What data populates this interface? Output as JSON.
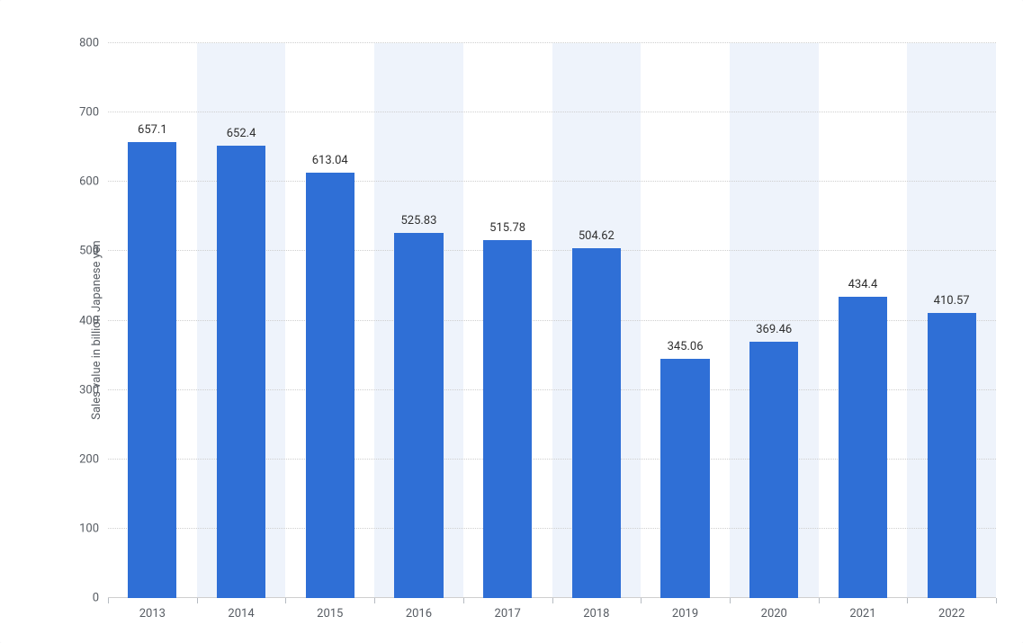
{
  "chart": {
    "type": "bar",
    "ylabel": "Sales value in billion Japanese yen",
    "ylim": [
      0,
      800
    ],
    "ytick_step": 100,
    "yticks": [
      0,
      100,
      200,
      300,
      400,
      500,
      600,
      700,
      800
    ],
    "categories": [
      "2013",
      "2014",
      "2015",
      "2016",
      "2017",
      "2018",
      "2019",
      "2020",
      "2021",
      "2022"
    ],
    "values": [
      657.1,
      652.4,
      613.04,
      525.83,
      515.78,
      504.62,
      345.06,
      369.46,
      434.4,
      410.57
    ],
    "value_labels": [
      "657.1",
      "652.4",
      "613.04",
      "525.83",
      "515.78",
      "504.62",
      "345.06",
      "369.46",
      "434.4",
      "410.57"
    ],
    "bar_color": "#2f6fd6",
    "alt_band_color": "#eef3fb",
    "background_color": "#ffffff",
    "grid_color": "#cfcfcf",
    "axis_text_color": "#575c63",
    "label_text_color": "#2f2f2f",
    "tick_fontsize": 13,
    "value_label_fontsize": 13,
    "ylabel_fontsize": 13,
    "bar_width_ratio": 0.55,
    "bar_group_padding_ratio": 0.0,
    "page_background": "#f4f6fa",
    "font_family": "sans-serif"
  }
}
